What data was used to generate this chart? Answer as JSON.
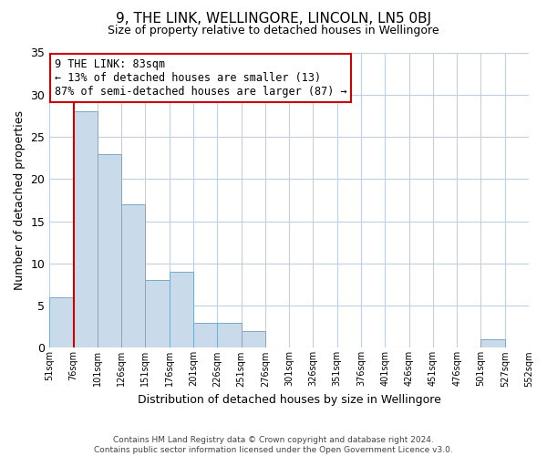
{
  "title": "9, THE LINK, WELLINGORE, LINCOLN, LN5 0BJ",
  "subtitle": "Size of property relative to detached houses in Wellingore",
  "xlabel": "Distribution of detached houses by size in Wellingore",
  "ylabel": "Number of detached properties",
  "bar_values": [
    6,
    28,
    23,
    17,
    8,
    9,
    3,
    3,
    2,
    0,
    0,
    0,
    0,
    0,
    0,
    0,
    0,
    0,
    1,
    0
  ],
  "bin_labels": [
    "51sqm",
    "76sqm",
    "101sqm",
    "126sqm",
    "151sqm",
    "176sqm",
    "201sqm",
    "226sqm",
    "251sqm",
    "276sqm",
    "301sqm",
    "326sqm",
    "351sqm",
    "376sqm",
    "401sqm",
    "426sqm",
    "451sqm",
    "476sqm",
    "501sqm",
    "527sqm",
    "552sqm"
  ],
  "bar_color": "#c9daea",
  "bar_edge_color": "#7aaac8",
  "vline_x": 1.0,
  "vline_color": "#cc0000",
  "annotation_text": "9 THE LINK: 83sqm\n← 13% of detached houses are smaller (13)\n87% of semi-detached houses are larger (87) →",
  "annotation_box_color": "#cc0000",
  "ylim": [
    0,
    35
  ],
  "yticks": [
    0,
    5,
    10,
    15,
    20,
    25,
    30,
    35
  ],
  "footer_line1": "Contains HM Land Registry data © Crown copyright and database right 2024.",
  "footer_line2": "Contains public sector information licensed under the Open Government Licence v3.0.",
  "bg_color": "#ffffff",
  "grid_color": "#c0d0e0"
}
